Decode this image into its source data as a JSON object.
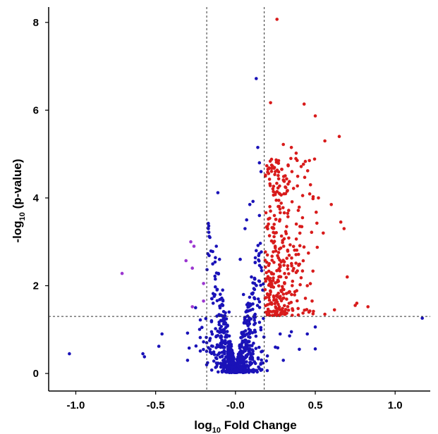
{
  "chart_data": {
    "type": "scatter",
    "title": "",
    "xlabel": {
      "main": "log",
      "sub": "10",
      "rest": " Fold Change"
    },
    "ylabel": {
      "main": "-log",
      "sub": "10",
      "rest": " (p-value)"
    },
    "xlim": [
      -1.17,
      1.22
    ],
    "ylim": [
      -0.4,
      8.35
    ],
    "xticks": [
      -1.0,
      -0.5,
      0.0,
      0.5,
      1.0
    ],
    "xtick_labels": [
      "-1.0",
      "-0.5",
      "-0.0",
      "0.5",
      "1.0"
    ],
    "yticks": [
      0,
      2,
      4,
      6,
      8
    ],
    "ytick_labels": [
      "0",
      "2",
      "4",
      "6",
      "8"
    ],
    "grid": false,
    "thresholds": {
      "fc_left": -0.18,
      "fc_right": 0.18,
      "pval": 1.3
    },
    "series": [
      {
        "color": "#1a12b8",
        "points": [
          [
            -1.04,
            0.45
          ],
          [
            -0.58,
            0.45
          ],
          [
            -0.57,
            0.38
          ],
          [
            -0.46,
            0.9
          ],
          [
            -0.48,
            0.62
          ],
          [
            -0.3,
            0.92
          ],
          [
            -0.29,
            0.58
          ],
          [
            -0.3,
            0.3
          ],
          [
            -0.22,
            1.22
          ],
          [
            -0.21,
            1.05
          ],
          [
            -0.2,
            0.72
          ],
          [
            -0.25,
            1.5
          ],
          [
            -0.17,
            3.3
          ],
          [
            -0.17,
            3.42
          ],
          [
            -0.16,
            3.1
          ],
          [
            -0.11,
            4.12
          ],
          [
            -0.12,
            2.9
          ],
          [
            -0.14,
            1.82
          ],
          [
            -0.14,
            1.6
          ],
          [
            -0.1,
            2.6
          ],
          [
            -0.09,
            1.55
          ],
          [
            -0.08,
            1.9
          ],
          [
            -0.07,
            1.3
          ],
          [
            -0.05,
            1.1
          ],
          [
            -0.04,
            1.4
          ],
          [
            -0.15,
            1.2
          ],
          [
            -0.15,
            0.95
          ],
          [
            -0.12,
            0.85
          ],
          [
            -0.1,
            0.95
          ],
          [
            -0.18,
            0.7
          ],
          [
            0.03,
            2.6
          ],
          [
            0.06,
            3.3
          ],
          [
            0.07,
            3.5
          ],
          [
            0.09,
            3.85
          ],
          [
            0.11,
            3.92
          ],
          [
            0.13,
            6.72
          ],
          [
            0.14,
            5.15
          ],
          [
            0.15,
            4.8
          ],
          [
            0.16,
            4.6
          ],
          [
            0.1,
            2.2
          ],
          [
            0.12,
            2.05
          ],
          [
            0.05,
            1.8
          ],
          [
            0.08,
            1.6
          ],
          [
            0.13,
            2.8
          ],
          [
            0.15,
            3.6
          ],
          [
            0.35,
            0.95
          ],
          [
            0.4,
            0.55
          ],
          [
            0.45,
            0.9
          ],
          [
            0.5,
            0.56
          ],
          [
            0.5,
            1.06
          ],
          [
            1.17,
            1.26
          ],
          [
            0.3,
            0.3
          ],
          [
            0.25,
            0.6
          ],
          [
            0.2,
            0.4
          ],
          [
            0.28,
            0.9
          ]
        ],
        "cloud": {
          "count": 720,
          "seed": 7
        }
      },
      {
        "color": "#d81b1b",
        "points": [
          [
            0.26,
            8.07
          ],
          [
            0.22,
            6.17
          ],
          [
            0.43,
            6.14
          ],
          [
            0.5,
            5.87
          ],
          [
            0.56,
            5.3
          ],
          [
            0.65,
            5.4
          ],
          [
            0.3,
            5.22
          ],
          [
            0.35,
            5.15
          ],
          [
            0.38,
            5.02
          ],
          [
            0.27,
            4.85
          ],
          [
            0.33,
            4.75
          ],
          [
            0.25,
            4.6
          ],
          [
            0.47,
            4.3
          ],
          [
            0.52,
            4.0
          ],
          [
            0.6,
            3.85
          ],
          [
            0.66,
            3.45
          ],
          [
            0.68,
            3.3
          ],
          [
            0.55,
            3.2
          ],
          [
            0.42,
            3.55
          ],
          [
            0.75,
            1.55
          ],
          [
            0.76,
            1.6
          ],
          [
            0.83,
            1.52
          ],
          [
            0.7,
            2.2
          ],
          [
            0.62,
            1.45
          ],
          [
            0.56,
            1.35
          ],
          [
            0.48,
            1.65
          ],
          [
            0.45,
            2.0
          ],
          [
            0.38,
            2.3
          ],
          [
            0.2,
            2.7
          ],
          [
            0.22,
            3.7
          ]
        ],
        "cloud": {
          "count": 340,
          "seed": 11
        }
      },
      {
        "color": "#9b36d0",
        "points": [
          [
            -0.71,
            2.28
          ],
          [
            -0.28,
            3.0
          ],
          [
            -0.26,
            2.9
          ],
          [
            -0.31,
            2.57
          ],
          [
            -0.27,
            2.4
          ],
          [
            -0.2,
            1.65
          ],
          [
            -0.2,
            2.05
          ],
          [
            -0.27,
            1.52
          ]
        ]
      }
    ]
  }
}
